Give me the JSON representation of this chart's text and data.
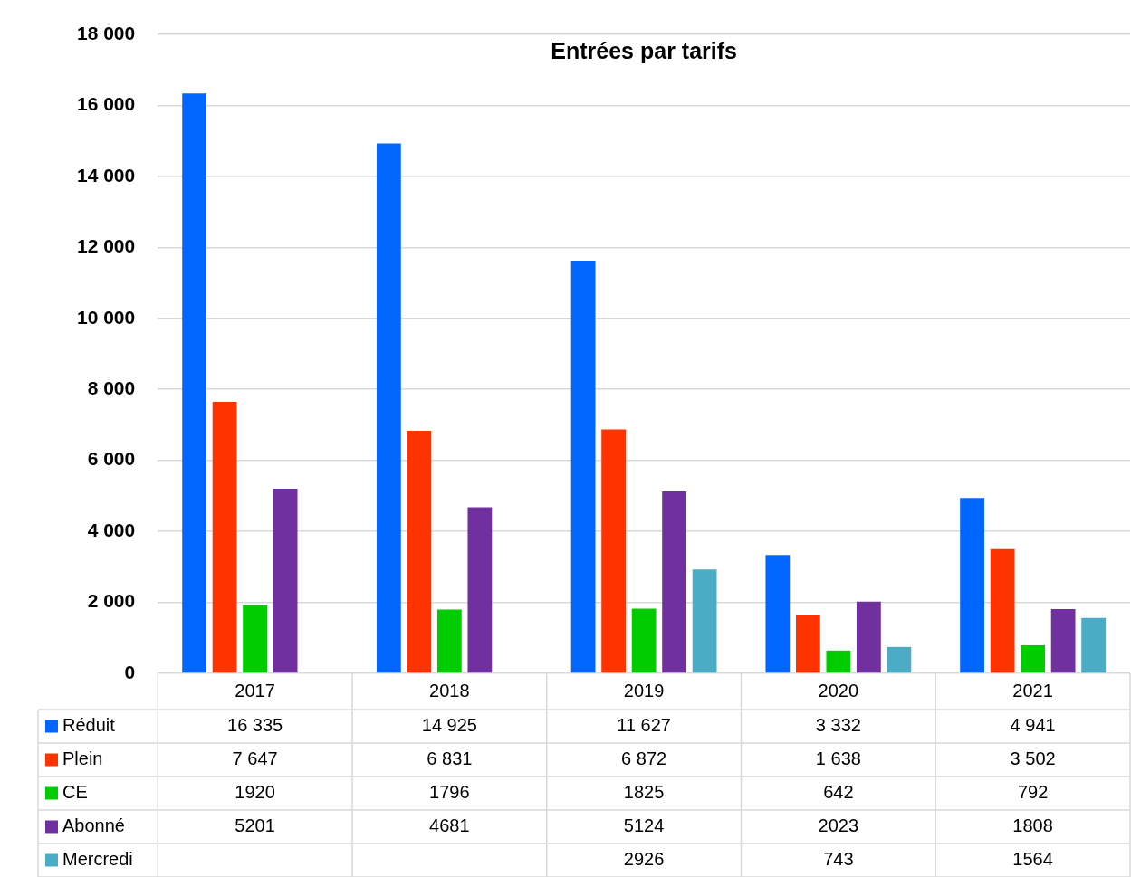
{
  "chart_data": {
    "type": "bar",
    "title": "Entrées par tarifs",
    "categories": [
      "2017",
      "2018",
      "2019",
      "2020",
      "2021"
    ],
    "series": [
      {
        "name": "Réduit",
        "color": "#0066ff",
        "values": [
          16335,
          14925,
          11627,
          3332,
          4941
        ],
        "value_labels": [
          "16 335",
          "14 925",
          "11 627",
          "3 332",
          "4 941"
        ]
      },
      {
        "name": "Plein",
        "color": "#ff3300",
        "values": [
          7647,
          6831,
          6872,
          1638,
          3502
        ],
        "value_labels": [
          "7 647",
          "6 831",
          "6 872",
          "1 638",
          "3 502"
        ]
      },
      {
        "name": "CE",
        "color": "#00cc00",
        "values": [
          1920,
          1796,
          1825,
          642,
          792
        ],
        "value_labels": [
          "1920",
          "1796",
          "1825",
          "642",
          "792"
        ]
      },
      {
        "name": "Abonné",
        "color": "#7030a0",
        "values": [
          5201,
          4681,
          5124,
          2023,
          1808
        ],
        "value_labels": [
          "5201",
          "4681",
          "5124",
          "2023",
          "1808"
        ]
      },
      {
        "name": "Mercredi",
        "color": "#4bacc6",
        "values": [
          null,
          null,
          2926,
          743,
          1564
        ],
        "value_labels": [
          null,
          null,
          "2926",
          "743",
          "1564"
        ]
      }
    ],
    "ylim": [
      0,
      18000
    ],
    "yticks": [
      {
        "value": 0,
        "label": "0"
      },
      {
        "value": 2000,
        "label": "2 000"
      },
      {
        "value": 4000,
        "label": "4 000"
      },
      {
        "value": 6000,
        "label": "6 000"
      },
      {
        "value": 8000,
        "label": "8 000"
      },
      {
        "value": 10000,
        "label": "10 000"
      },
      {
        "value": 12000,
        "label": "12 000"
      },
      {
        "value": 14000,
        "label": "14 000"
      },
      {
        "value": 16000,
        "label": "16 000"
      },
      {
        "value": 18000,
        "label": "18 000"
      }
    ],
    "grid": "y",
    "legend": "bottom"
  }
}
